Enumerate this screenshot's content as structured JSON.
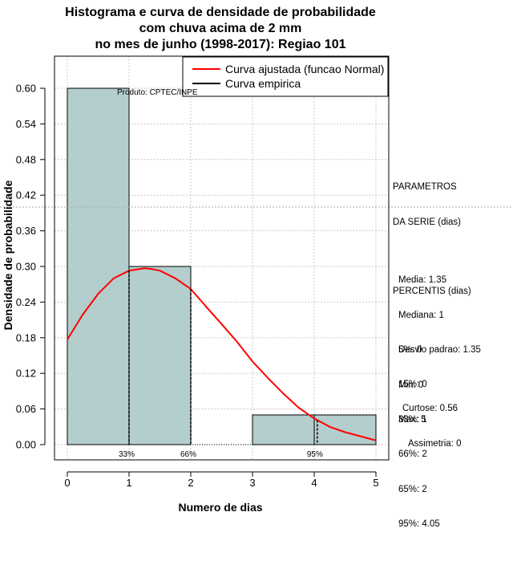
{
  "title": {
    "line1": "Histograma e curva de densidade de probabilidade",
    "line2": "com chuva acima de 2 mm",
    "line3": "no mes de junho (1998-2017): Regiao 101"
  },
  "producer": "Produto: CPTEC/INPE",
  "chart_data": {
    "type": "bar",
    "title": "Histograma e curva de densidade de probabilidade com chuva acima de 2 mm no mes de junho (1998-2017): Regiao 101",
    "xlabel": "Numero de dias",
    "ylabel": "Densidade de probabilidade",
    "xlim": [
      0,
      5
    ],
    "ylim": [
      0,
      0.6
    ],
    "x_ticks": [
      "0",
      "1",
      "2",
      "3",
      "4",
      "5"
    ],
    "x_tick_values": [
      0,
      1,
      2,
      3,
      4,
      5
    ],
    "y_ticks": [
      "0.00",
      "0.06",
      "0.12",
      "0.18",
      "0.24",
      "0.30",
      "0.36",
      "0.42",
      "0.48",
      "0.54",
      "0.60"
    ],
    "y_tick_values": [
      0,
      0.06,
      0.12,
      0.18,
      0.24,
      0.3,
      0.36,
      0.42,
      0.48,
      0.54,
      0.6
    ],
    "histogram": [
      {
        "x0": 0,
        "x1": 1,
        "density": 0.6
      },
      {
        "x0": 1,
        "x1": 2,
        "density": 0.3
      },
      {
        "x0": 2,
        "x1": 3,
        "density": 0.0
      },
      {
        "x0": 3,
        "x1": 4,
        "density": 0.05
      },
      {
        "x0": 4,
        "x1": 5,
        "density": 0.05
      }
    ],
    "reference_line_y": 0.4,
    "normal_curve": {
      "name": "Curva ajustada (funcao Normal)",
      "color": "#ff0000",
      "x": [
        0,
        0.25,
        0.5,
        0.75,
        1.0,
        1.25,
        1.35,
        1.5,
        1.75,
        2.0,
        2.25,
        2.5,
        2.75,
        3.0,
        3.25,
        3.5,
        3.75,
        4.0,
        4.25,
        4.5,
        4.75,
        5.0
      ],
      "y": [
        0.177,
        0.219,
        0.254,
        0.28,
        0.293,
        0.297,
        0.296,
        0.293,
        0.28,
        0.262,
        0.232,
        0.203,
        0.173,
        0.14,
        0.112,
        0.086,
        0.062,
        0.044,
        0.03,
        0.021,
        0.014,
        0.007
      ]
    },
    "empirical_curve": {
      "name": "Curva empirica",
      "color": "#000000"
    },
    "percentile_markers": [
      {
        "label": "33%",
        "x": 1
      },
      {
        "label": "66%",
        "x": 2
      },
      {
        "label": "95%",
        "x": 4.05
      }
    ],
    "legend_position": "top-right",
    "grid": true,
    "colors": {
      "bar_fill": "#b4cdcd",
      "grid": "#c8c8c8"
    }
  },
  "stats": {
    "params_title": [
      "PARAMETROS",
      "DA SERIE (dias)"
    ],
    "params": [
      "Media: 1.35",
      "Mediana: 1",
      "Desvio padrao: 1.35",
      "Min: 0",
      "Max: 5"
    ],
    "percentis_title": "PERCENTIS (dias)",
    "percentis": [
      "5%: 0",
      "15%: 0",
      "33%: 1",
      "66%: 2",
      "65%: 2",
      "95%: 4.05"
    ],
    "curtose": "Curtose: 0.56",
    "assimetria": "Assimetria: 0"
  }
}
